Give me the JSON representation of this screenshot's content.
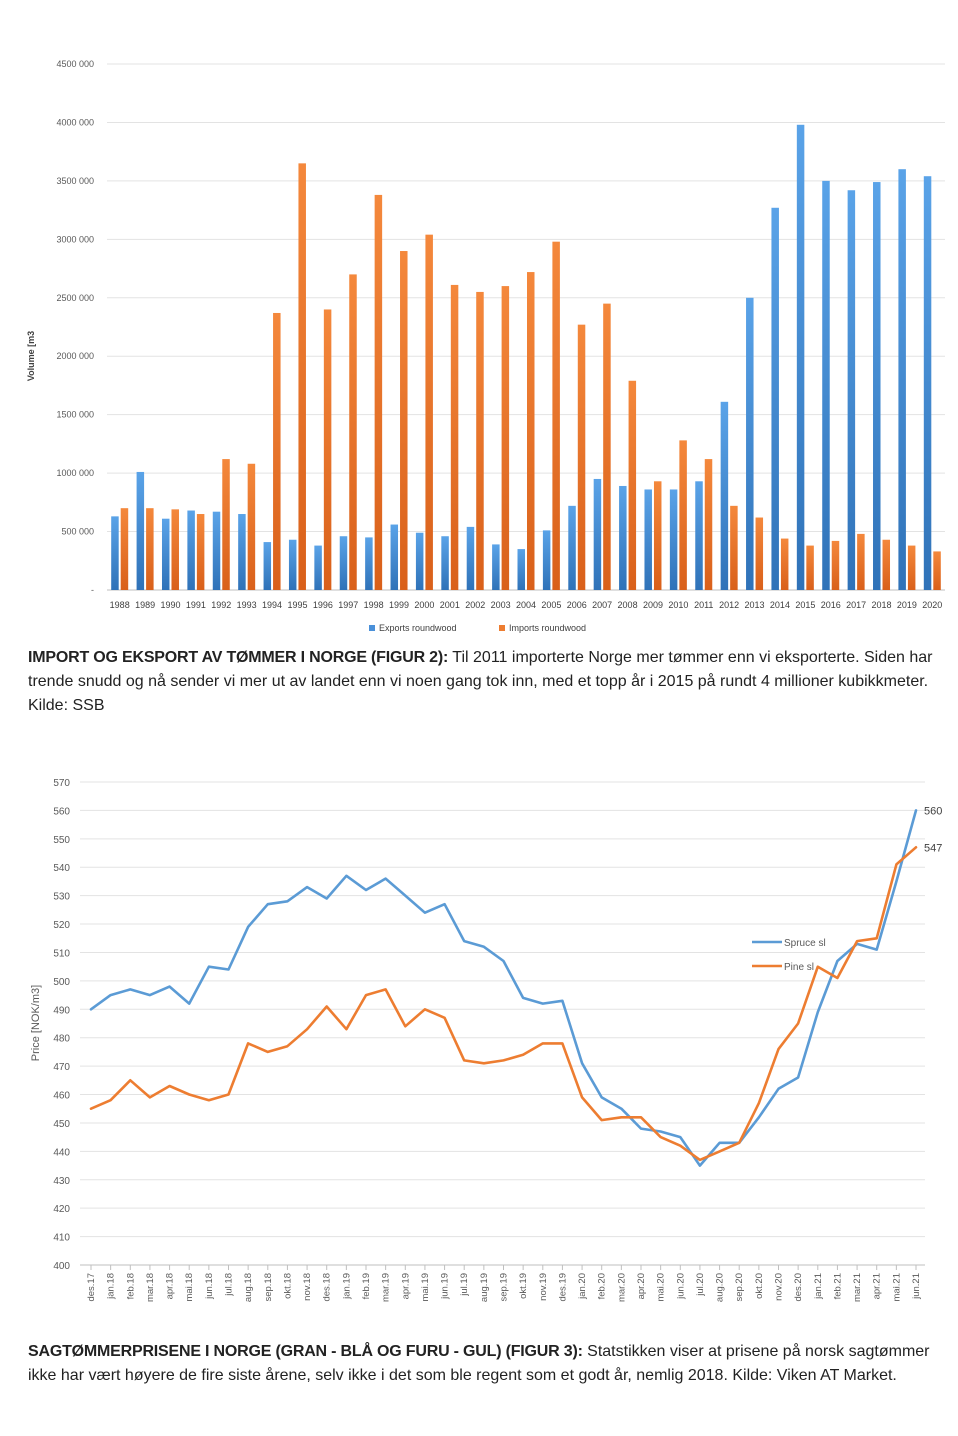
{
  "chart_data": [
    {
      "type": "bar",
      "ylabel": "Volume [m3",
      "ylim": [
        0,
        4500000
      ],
      "y_ticks": [
        "-",
        "500 000",
        "1000 000",
        "1500 000",
        "2000 000",
        "2500 000",
        "3000 000",
        "3500 000",
        "4000 000",
        "4500 000"
      ],
      "grid": true,
      "legend_position": "bottom",
      "categories": [
        "1988",
        "1989",
        "1990",
        "1991",
        "1992",
        "1993",
        "1994",
        "1995",
        "1996",
        "1997",
        "1998",
        "1999",
        "2000",
        "2001",
        "2002",
        "2003",
        "2004",
        "2005",
        "2006",
        "2007",
        "2008",
        "2009",
        "2010",
        "2011",
        "2012",
        "2013",
        "2014",
        "2015",
        "2016",
        "2017",
        "2018",
        "2019",
        "2020"
      ],
      "series": [
        {
          "name": "Exports roundwood",
          "color": "#4a90d9",
          "values": [
            630000,
            1010000,
            610000,
            680000,
            670000,
            650000,
            410000,
            430000,
            380000,
            460000,
            450000,
            560000,
            490000,
            460000,
            540000,
            390000,
            350000,
            510000,
            720000,
            950000,
            890000,
            860000,
            860000,
            930000,
            1610000,
            2500000,
            3270000,
            3980000,
            3500000,
            3420000,
            3490000,
            3600000,
            3540000
          ]
        },
        {
          "name": "Imports roundwood",
          "color": "#ed7d31",
          "values": [
            700000,
            700000,
            690000,
            650000,
            1120000,
            1080000,
            2370000,
            3650000,
            2400000,
            2700000,
            3380000,
            2900000,
            3040000,
            2610000,
            2550000,
            2600000,
            2720000,
            2980000,
            2270000,
            2450000,
            1790000,
            930000,
            1280000,
            1120000,
            720000,
            620000,
            440000,
            380000,
            420000,
            480000,
            430000,
            380000,
            330000
          ]
        }
      ]
    },
    {
      "type": "line",
      "ylabel": "Price [NOK/m3]",
      "ylim": [
        400,
        570
      ],
      "y_ticks": [
        400,
        410,
        420,
        430,
        440,
        450,
        460,
        470,
        480,
        490,
        500,
        510,
        520,
        530,
        540,
        550,
        560,
        570
      ],
      "grid": true,
      "legend_position": "right",
      "categories": [
        "des.17",
        "jan.18",
        "feb.18",
        "mar.18",
        "apr.18",
        "mai.18",
        "jun.18",
        "jul.18",
        "aug.18",
        "sep.18",
        "okt.18",
        "nov.18",
        "des.18",
        "jan.19",
        "feb.19",
        "mar.19",
        "apr.19",
        "mai.19",
        "jun.19",
        "jul.19",
        "aug.19",
        "sep.19",
        "okt.19",
        "nov.19",
        "des.19",
        "jan.20",
        "feb.20",
        "mar.20",
        "apr.20",
        "mai.20",
        "jun.20",
        "jul.20",
        "aug.20",
        "sep.20",
        "okt.20",
        "nov.20",
        "des.20",
        "jan.21",
        "feb.21",
        "mar.21",
        "apr.21",
        "mai.21",
        "jun.21"
      ],
      "series": [
        {
          "name": "Spruce sl",
          "color": "#5b9bd5",
          "end_label": "560",
          "values": [
            490,
            495,
            497,
            495,
            498,
            492,
            505,
            504,
            519,
            527,
            528,
            533,
            529,
            537,
            532,
            536,
            530,
            524,
            527,
            514,
            512,
            507,
            494,
            492,
            493,
            471,
            459,
            455,
            448,
            447,
            445,
            435,
            443,
            443,
            452,
            462,
            466,
            489,
            507,
            513,
            511,
            535,
            560
          ]
        },
        {
          "name": "Pine sl",
          "color": "#ed7d31",
          "end_label": "547",
          "values": [
            455,
            458,
            465,
            459,
            463,
            460,
            458,
            460,
            478,
            475,
            477,
            483,
            491,
            483,
            495,
            497,
            484,
            490,
            487,
            472,
            471,
            472,
            474,
            478,
            478,
            459,
            451,
            452,
            452,
            445,
            442,
            437,
            440,
            443,
            457,
            476,
            485,
            505,
            501,
            514,
            515,
            541,
            547
          ]
        }
      ]
    }
  ],
  "captions": {
    "fig2_title": "IMPORT OG EKSPORT AV TØMMER I NORGE (FIGUR 2):",
    "fig2_text": "Til 2011 importerte Norge mer tømmer enn vi eksporterte. Siden har trende snudd og nå sender vi mer ut av landet enn vi noen gang tok inn, med et topp år i 2015 på rundt 4 millioner kubikkmeter. Kilde: SSB",
    "fig3_title": "SAGTØMMERPRISENE I NORGE (GRAN - BLÅ OG FURU - GUL) (FIGUR 3):",
    "fig3_text": "Statstikken viser at prisene på norsk sagtømmer ikke har vært høyere de fire siste årene, selv ikke i det som ble regent som et godt år, nemlig 2018. Kilde: Viken AT Market."
  }
}
